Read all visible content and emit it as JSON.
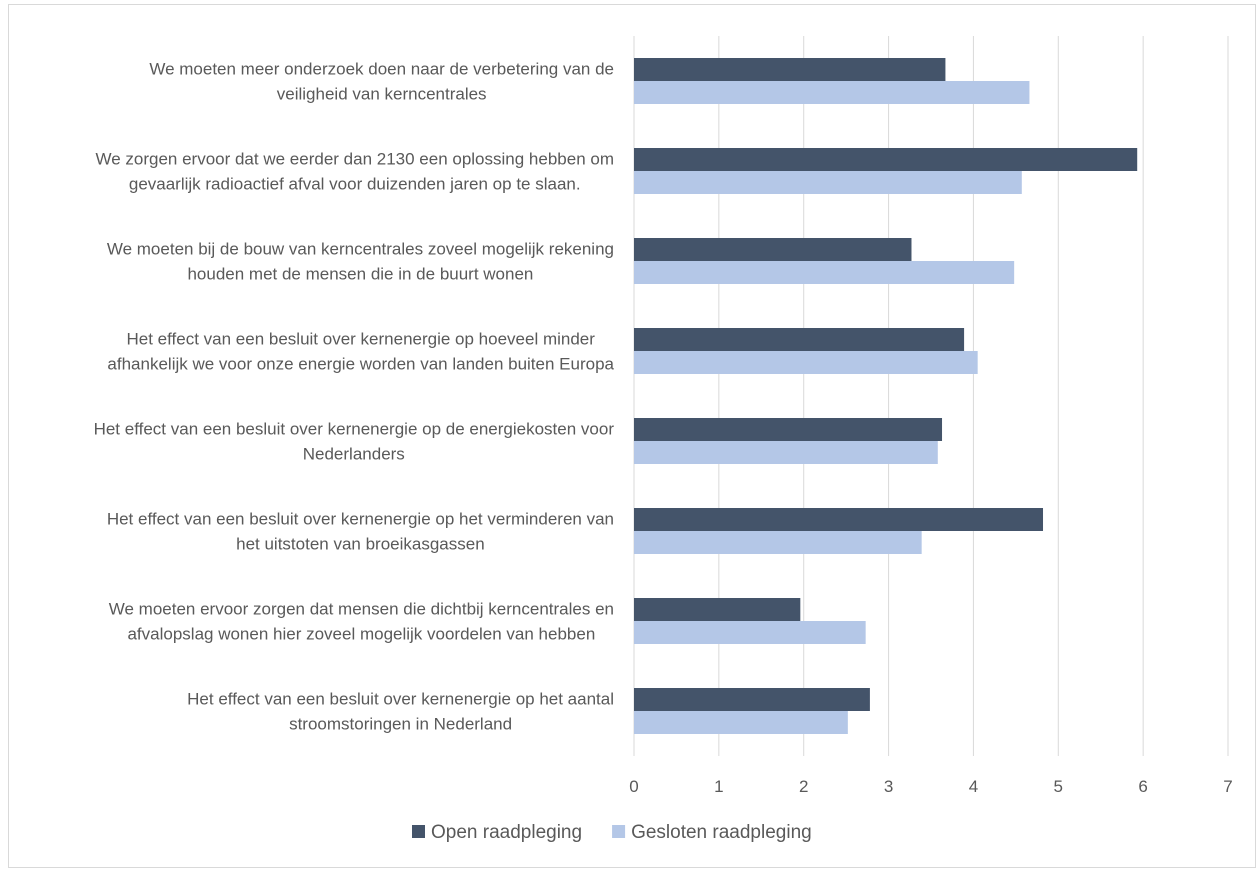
{
  "chart_data": {
    "type": "bar",
    "orientation": "horizontal",
    "categories": [
      [
        "We moeten meer onderzoek doen naar de verbetering van de",
        "veiligheid van kerncentrales"
      ],
      [
        "We zorgen ervoor dat we eerder dan 2130 een oplossing hebben om",
        "gevaarlijk radioactief afval voor duizenden jaren op te slaan."
      ],
      [
        "We moeten bij de bouw van kerncentrales zoveel mogelijk rekening",
        "houden met de mensen die in de buurt wonen"
      ],
      [
        "Het effect van een besluit over kernenergie op hoeveel minder",
        "afhankelijk we voor onze energie worden van landen buiten Europa"
      ],
      [
        "Het effect van een besluit over kernenergie op de energiekosten voor",
        "Nederlanders"
      ],
      [
        "Het effect van een besluit over kernenergie op het verminderen van",
        "het uitstoten van broeikasgassen"
      ],
      [
        "We moeten ervoor zorgen dat mensen die dichtbij kerncentrales en",
        "afvalopslag wonen hier zoveel mogelijk voordelen van hebben"
      ],
      [
        "Het effect van een besluit over kernenergie op het aantal",
        "stroomstoringen in Nederland"
      ]
    ],
    "series": [
      {
        "name": "Open raadpleging",
        "color": "#44546a",
        "values": [
          3.67,
          5.93,
          3.27,
          3.89,
          3.63,
          4.82,
          1.96,
          2.78
        ]
      },
      {
        "name": "Gesloten raadpleging",
        "color": "#b4c7e7",
        "values": [
          4.66,
          4.57,
          4.48,
          4.05,
          3.58,
          3.39,
          2.73,
          2.52
        ]
      }
    ],
    "xlim": [
      0,
      7
    ],
    "xticks": [
      "0",
      "1",
      "2",
      "3",
      "4",
      "5",
      "6",
      "7"
    ],
    "grid": true,
    "legend_position": "bottom"
  }
}
